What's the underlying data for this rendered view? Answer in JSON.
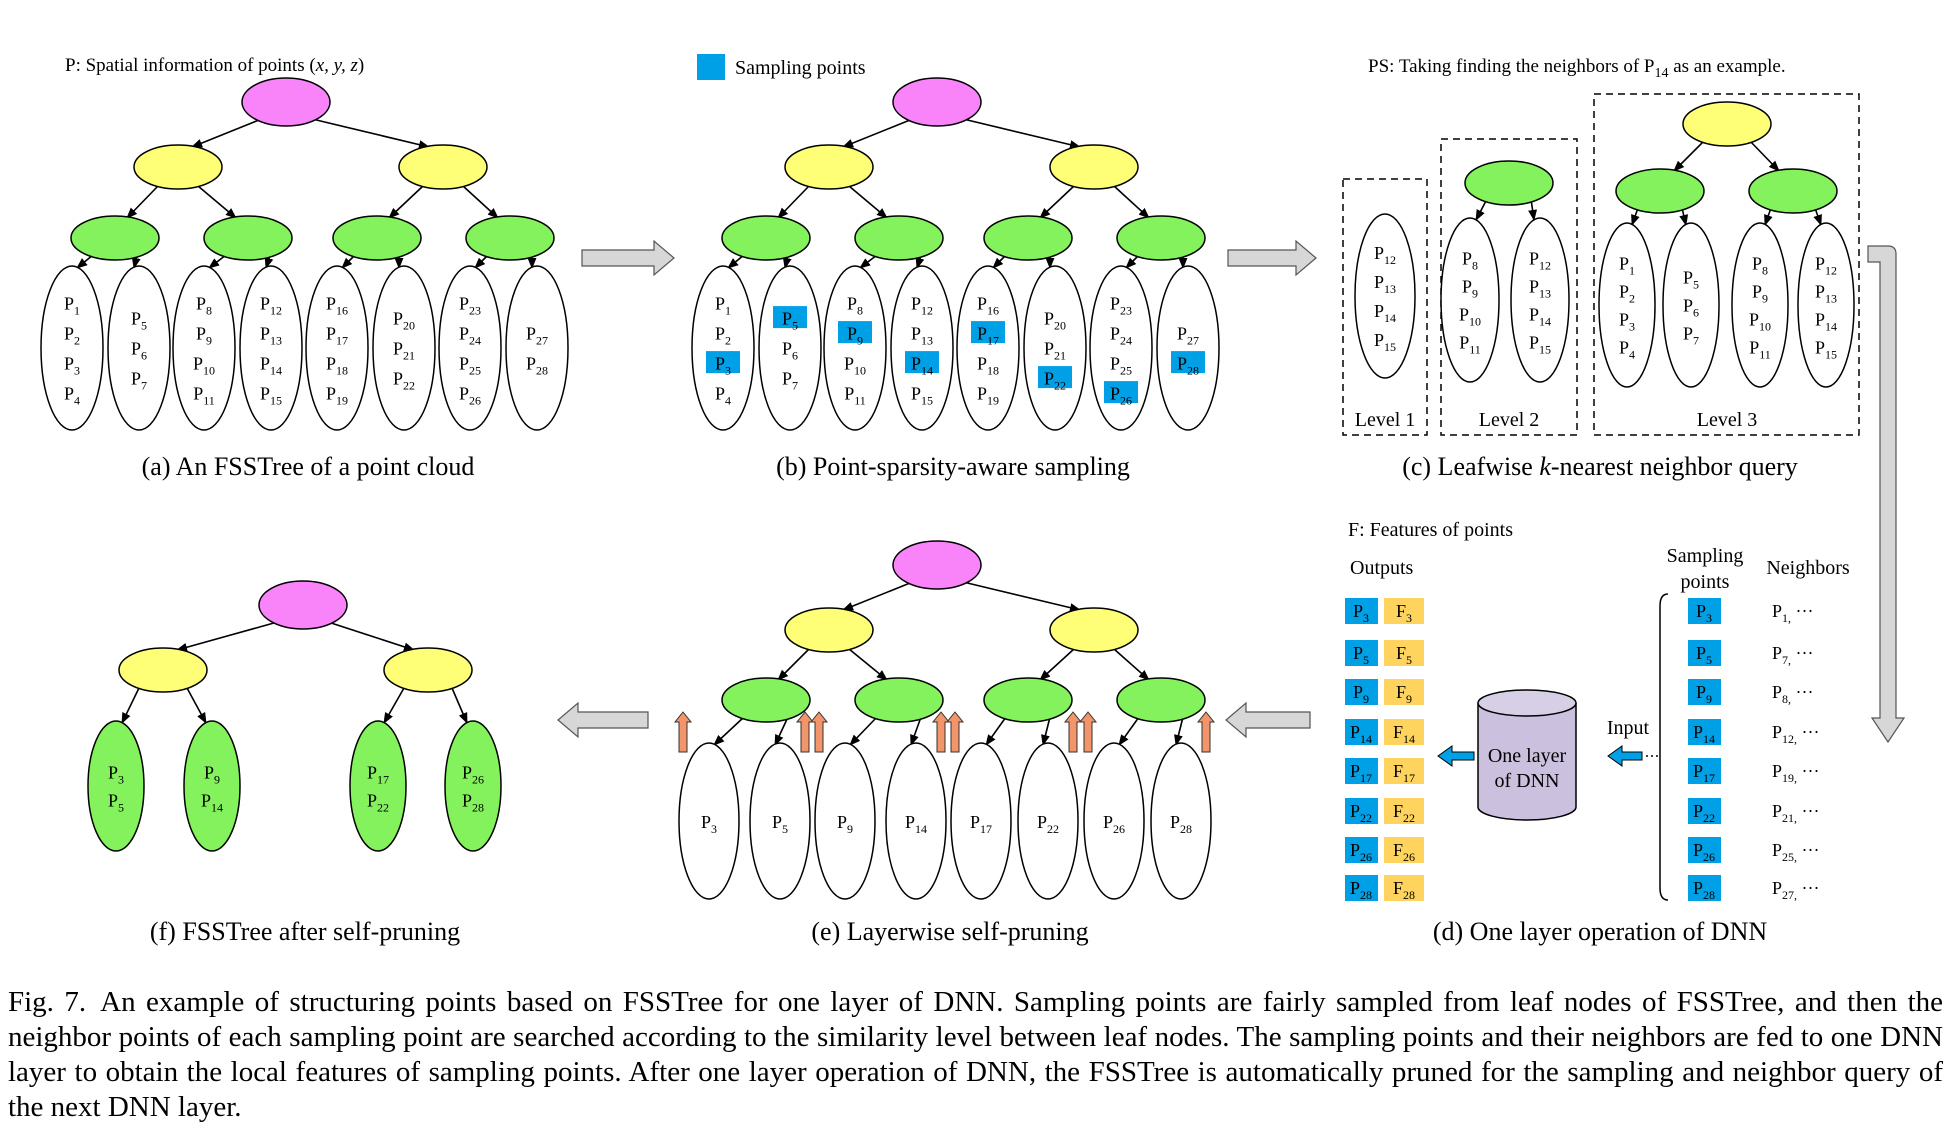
{
  "colors": {
    "root": "#f984f9",
    "level1": "#ffff77",
    "level2": "#83f25c",
    "sample": "#00a0e6",
    "feature": "#ffd45e",
    "dnn": "#cbc0dd",
    "arrow_gray": "#d7d7d7",
    "prune_arrow": "#f2956a"
  },
  "panel_a": {
    "note_prefix": "P: Spatial information of points (",
    "note_vars": "x, y, z",
    "note_suffix": ")",
    "caption": "(a) An FSSTree of a point cloud",
    "leaves": [
      [
        "1",
        "2",
        "3",
        "4"
      ],
      [
        "5",
        "6",
        "7"
      ],
      [
        "8",
        "9",
        "10",
        "11"
      ],
      [
        "12",
        "13",
        "14",
        "15"
      ],
      [
        "16",
        "17",
        "18",
        "19"
      ],
      [
        "20",
        "21",
        "22"
      ],
      [
        "23",
        "24",
        "25",
        "26"
      ],
      [
        "27",
        "28"
      ]
    ]
  },
  "panel_b": {
    "legend": "Sampling points",
    "caption": "(b) Point-sparsity-aware sampling",
    "sampled": [
      "3",
      "5",
      "9",
      "14",
      "17",
      "22",
      "26",
      "28"
    ]
  },
  "panel_c": {
    "note_prefix": "PS: Taking finding the neighbors of P",
    "note_sub": "14",
    "note_suffix": " as an example.",
    "caption_prefix": "(c) Leafwise ",
    "caption_italic": "k",
    "caption_suffix": "-nearest neighbor query",
    "level1_label": "Level 1",
    "level2_label": "Level 2",
    "level3_label": "Level 3",
    "level1_leaf": [
      "12",
      "13",
      "14",
      "15"
    ],
    "level2_leaves": [
      [
        "8",
        "9",
        "10",
        "11"
      ],
      [
        "12",
        "13",
        "14",
        "15"
      ]
    ],
    "level3_leaves": [
      [
        "1",
        "2",
        "3",
        "4"
      ],
      [
        "5",
        "6",
        "7"
      ],
      [
        "8",
        "9",
        "10",
        "11"
      ],
      [
        "12",
        "13",
        "14",
        "15"
      ]
    ]
  },
  "panel_d": {
    "features_note": "F: Features of points",
    "outputs_label": "Outputs",
    "sampling_label_line1": "Sampling",
    "sampling_label_line2": "points",
    "neighbors_label": "Neighbors",
    "input_label": "Input",
    "dnn_line1": "One layer",
    "dnn_line2": "of DNN",
    "caption": "(d) One layer operation of DNN",
    "rows": [
      {
        "p": "3",
        "n": "1"
      },
      {
        "p": "5",
        "n": "7"
      },
      {
        "p": "9",
        "n": "8"
      },
      {
        "p": "14",
        "n": "12"
      },
      {
        "p": "17",
        "n": "19"
      },
      {
        "p": "22",
        "n": "21"
      },
      {
        "p": "26",
        "n": "25"
      },
      {
        "p": "28",
        "n": "27"
      }
    ]
  },
  "panel_e": {
    "caption": "(e) Layerwise self-pruning",
    "leaves": [
      "3",
      "5",
      "9",
      "14",
      "17",
      "22",
      "26",
      "28"
    ]
  },
  "panel_f": {
    "caption": "(f) FSSTree after self-pruning",
    "leaves": [
      [
        "3",
        "5"
      ],
      [
        "9",
        "14"
      ],
      [
        "17",
        "22"
      ],
      [
        "26",
        "28"
      ]
    ]
  },
  "caption": {
    "label": "Fig. 7.",
    "text": "An example of structuring points based on FSSTree for one layer of DNN. Sampling points are fairly sampled from leaf nodes of FSSTree, and then the neighbor points of each sampling point are searched according to the similarity level between leaf nodes. The sampling points and their neighbors are fed to one DNN layer to obtain the local features of sampling points. After one layer operation of DNN, the FSSTree is automatically pruned for the sampling and neighbor query of the next DNN layer."
  }
}
